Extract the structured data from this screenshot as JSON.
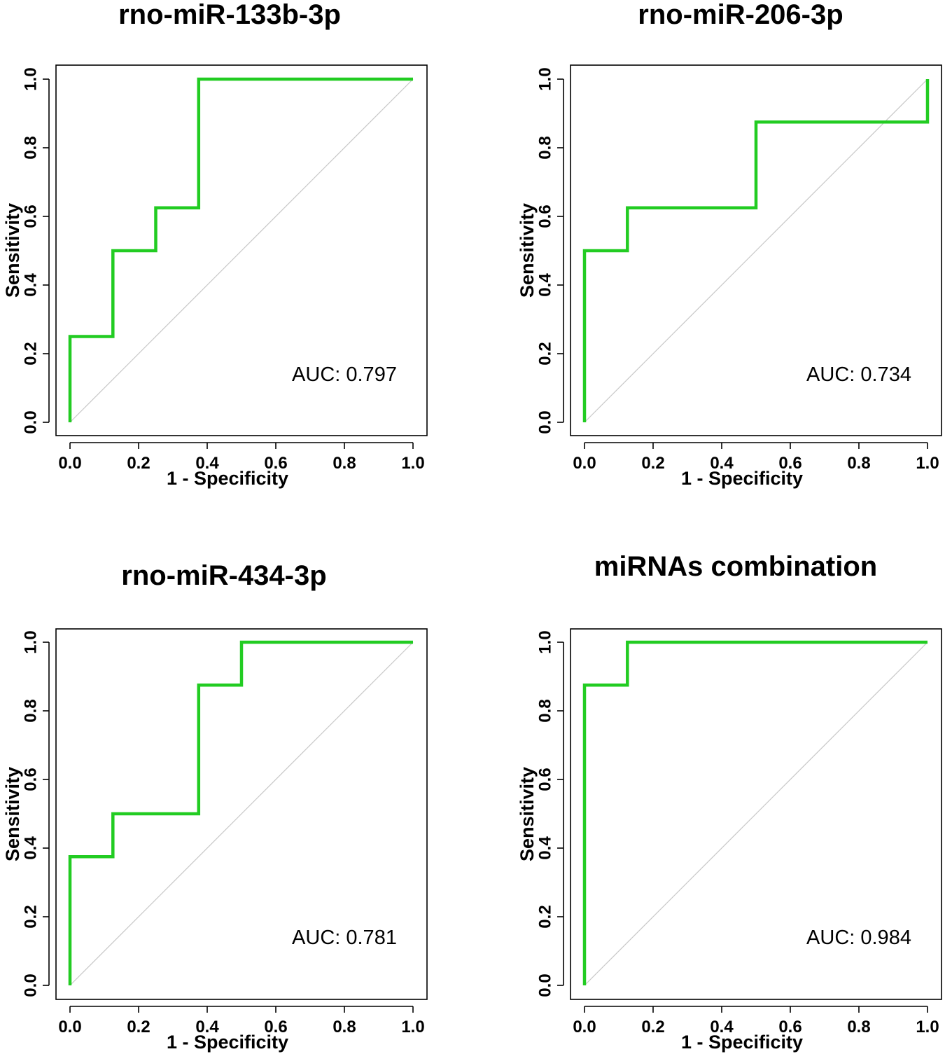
{
  "figure": {
    "colors": {
      "roc_line": "#22cc22",
      "diagonal": "#c8c8c8",
      "axes": "#000000"
    }
  },
  "chart_data": [
    {
      "type": "line",
      "title": "rno-miR-133b-3p",
      "xlabel": "1 - Specificity",
      "ylabel": "Sensitivity",
      "xlim": [
        0,
        1
      ],
      "ylim": [
        0,
        1
      ],
      "xticks": [
        "0.0",
        "0.2",
        "0.4",
        "0.6",
        "0.8",
        "1.0"
      ],
      "yticks": [
        "0.0",
        "0.2",
        "0.4",
        "0.6",
        "0.8",
        "1.0"
      ],
      "auc_label": "AUC: 0.797",
      "series": [
        {
          "name": "ROC",
          "x": [
            0,
            0,
            0.125,
            0.125,
            0.25,
            0.25,
            0.375,
            0.375,
            1.0
          ],
          "y": [
            0,
            0.25,
            0.25,
            0.5,
            0.5,
            0.625,
            0.625,
            1.0,
            1.0
          ]
        }
      ],
      "reference_line": {
        "x": [
          0,
          1
        ],
        "y": [
          0,
          1
        ]
      }
    },
    {
      "type": "line",
      "title": "rno-miR-206-3p",
      "xlabel": "1 - Specificity",
      "ylabel": "Sensitivity",
      "xlim": [
        0,
        1
      ],
      "ylim": [
        0,
        1
      ],
      "xticks": [
        "0.0",
        "0.2",
        "0.4",
        "0.6",
        "0.8",
        "1.0"
      ],
      "yticks": [
        "0.0",
        "0.2",
        "0.4",
        "0.6",
        "0.8",
        "1.0"
      ],
      "auc_label": "AUC: 0.734",
      "series": [
        {
          "name": "ROC",
          "x": [
            0,
            0,
            0.125,
            0.125,
            0.5,
            0.5,
            1.0,
            1.0
          ],
          "y": [
            0,
            0.5,
            0.5,
            0.625,
            0.625,
            0.875,
            0.875,
            1.0
          ]
        }
      ],
      "reference_line": {
        "x": [
          0,
          1
        ],
        "y": [
          0,
          1
        ]
      }
    },
    {
      "type": "line",
      "title": "rno-miR-434-3p",
      "xlabel": "1 - Specificity",
      "ylabel": "Sensitivity",
      "xlim": [
        0,
        1
      ],
      "ylim": [
        0,
        1
      ],
      "xticks": [
        "0.0",
        "0.2",
        "0.4",
        "0.6",
        "0.8",
        "1.0"
      ],
      "yticks": [
        "0.0",
        "0.2",
        "0.4",
        "0.6",
        "0.8",
        "1.0"
      ],
      "auc_label": "AUC: 0.781",
      "series": [
        {
          "name": "ROC",
          "x": [
            0,
            0,
            0.125,
            0.125,
            0.375,
            0.375,
            0.5,
            0.5,
            1.0
          ],
          "y": [
            0,
            0.375,
            0.375,
            0.5,
            0.5,
            0.875,
            0.875,
            1.0,
            1.0
          ]
        }
      ],
      "reference_line": {
        "x": [
          0,
          1
        ],
        "y": [
          0,
          1
        ]
      }
    },
    {
      "type": "line",
      "title": "miRNAs combination",
      "xlabel": "1 - Specificity",
      "ylabel": "Sensitivity",
      "xlim": [
        0,
        1
      ],
      "ylim": [
        0,
        1
      ],
      "xticks": [
        "0.0",
        "0.2",
        "0.4",
        "0.6",
        "0.8",
        "1.0"
      ],
      "yticks": [
        "0.0",
        "0.2",
        "0.4",
        "0.6",
        "0.8",
        "1.0"
      ],
      "auc_label": "AUC: 0.984",
      "series": [
        {
          "name": "ROC",
          "x": [
            0,
            0,
            0.125,
            0.125,
            1.0
          ],
          "y": [
            0,
            0.875,
            0.875,
            1.0,
            1.0
          ]
        }
      ],
      "reference_line": {
        "x": [
          0,
          1
        ],
        "y": [
          0,
          1
        ]
      }
    }
  ]
}
